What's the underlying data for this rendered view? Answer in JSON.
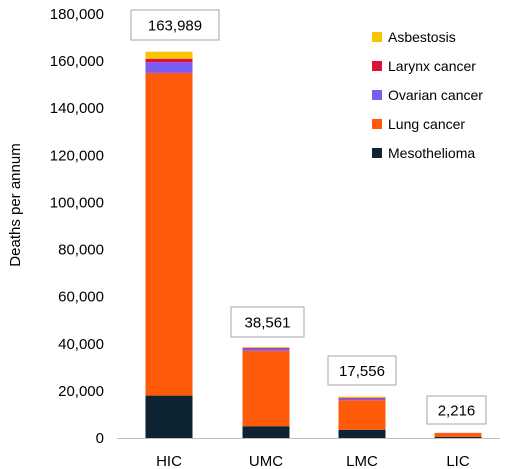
{
  "chart_data": {
    "type": "bar",
    "stacked": true,
    "categories": [
      "HIC",
      "UMC",
      "LMC",
      "LIC"
    ],
    "series": [
      {
        "name": "Mesothelioma",
        "color": "#0e2433",
        "values": [
          18000,
          5000,
          3500,
          500
        ]
      },
      {
        "name": "Lung cancer",
        "color": "#ff5a0a",
        "values": [
          137000,
          32000,
          12500,
          1600
        ]
      },
      {
        "name": "Ovarian cancer",
        "color": "#7b5cf5",
        "values": [
          4500,
          1000,
          800,
          60
        ]
      },
      {
        "name": "Larynx cancer",
        "color": "#e0103a",
        "values": [
          1500,
          300,
          300,
          26
        ]
      },
      {
        "name": "Asbestosis",
        "color": "#f7c400",
        "values": [
          2989,
          261,
          456,
          30
        ]
      }
    ],
    "totals": [
      "163,989",
      "38,561",
      "17,556",
      "2,216"
    ],
    "ylabel": "Deaths per annum",
    "ylim": [
      0,
      180000
    ],
    "yticks": [
      0,
      20000,
      40000,
      60000,
      80000,
      100000,
      120000,
      140000,
      160000,
      180000
    ],
    "ytick_labels": [
      "0",
      "20,000",
      "40,000",
      "60,000",
      "80,000",
      "100,000",
      "120,000",
      "140,000",
      "160,000",
      "180,000"
    ],
    "legend": {
      "placement": "top-right",
      "entries": [
        "Asbestosis",
        "Larynx cancer",
        "Ovarian cancer",
        "Lung cancer",
        "Mesothelioma"
      ]
    },
    "grid": false
  }
}
